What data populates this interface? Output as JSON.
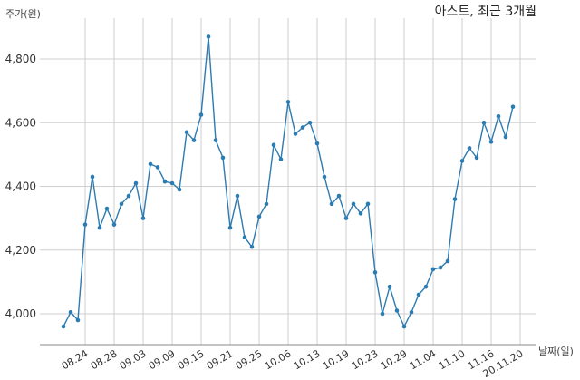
{
  "chart_data": {
    "type": "line",
    "title": "아스트, 최근 3개월",
    "ylabel": "주가(원)",
    "xlabel": "날짜(일)",
    "ylim": [
      3920,
      4920
    ],
    "yticks": [
      4000,
      4200,
      4400,
      4600,
      4800
    ],
    "ytick_labels": [
      "4,000",
      "4,200",
      "4,400",
      "4,600",
      "4,800"
    ],
    "grid": true,
    "color": "#2e7bb0",
    "x_tick_labels": [
      "08.24",
      "08.28",
      "09.03",
      "09.09",
      "09.15",
      "09.21",
      "09.25",
      "10.06",
      "10.13",
      "10.19",
      "10.23",
      "10.29",
      "11.04",
      "11.10",
      "11.16",
      "20.11.20"
    ],
    "x_tick_indices": [
      3,
      7,
      11,
      15,
      19,
      23,
      27,
      31,
      35,
      39,
      43,
      47,
      51,
      55,
      59,
      63
    ],
    "values": [
      3960,
      4005,
      3980,
      4280,
      4430,
      4270,
      4330,
      4280,
      4345,
      4370,
      4410,
      4300,
      4470,
      4460,
      4415,
      4410,
      4390,
      4570,
      4545,
      4625,
      4870,
      4545,
      4490,
      4270,
      4370,
      4240,
      4210,
      4305,
      4345,
      4530,
      4485,
      4665,
      4565,
      4585,
      4600,
      4535,
      4430,
      4345,
      4370,
      4300,
      4345,
      4315,
      4345,
      4130,
      4000,
      4085,
      4010,
      3960,
      4005,
      4060,
      4085,
      4140,
      4145,
      4165,
      4360,
      4480,
      4520,
      4490,
      4600,
      4540,
      4620,
      4555,
      4650
    ]
  }
}
